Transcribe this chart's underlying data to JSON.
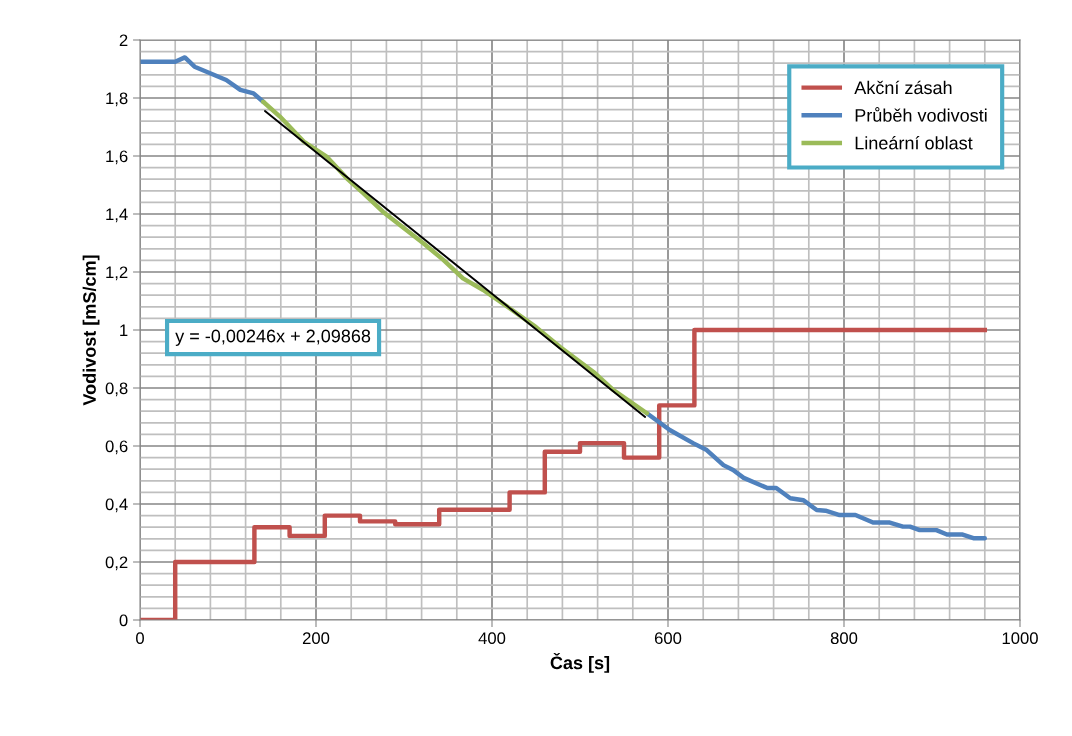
{
  "chart_data": {
    "type": "line",
    "xlabel": "Čas [s]",
    "ylabel": "Vodivost [mS/cm]",
    "xlim": [
      0,
      1000
    ],
    "ylim": [
      0,
      2
    ],
    "xticks": [
      0,
      {
        "value": 40,
        "label": null
      },
      {
        "value": 80,
        "label": null
      },
      {
        "value": 120,
        "label": null
      },
      {
        "value": 160,
        "label": null
      },
      200,
      {
        "value": 240,
        "label": null
      },
      {
        "value": 280,
        "label": null
      },
      {
        "value": 320,
        "label": null
      },
      {
        "value": 360,
        "label": null
      },
      400,
      {
        "value": 440,
        "label": null
      },
      {
        "value": 480,
        "label": null
      },
      {
        "value": 520,
        "label": null
      },
      {
        "value": 560,
        "label": null
      },
      600,
      {
        "value": 640,
        "label": null
      },
      {
        "value": 680,
        "label": null
      },
      {
        "value": 720,
        "label": null
      },
      {
        "value": 760,
        "label": null
      },
      800,
      {
        "value": 840,
        "label": null
      },
      {
        "value": 880,
        "label": null
      },
      {
        "value": 920,
        "label": null
      },
      {
        "value": 960,
        "label": null
      },
      1000
    ],
    "yticks": [
      0,
      {
        "value": 0.04,
        "label": null
      },
      {
        "value": 0.08,
        "label": null
      },
      {
        "value": 0.12,
        "label": null
      },
      {
        "value": 0.16,
        "label": null
      },
      {
        "value": 0.2,
        "label": "0,2"
      },
      {
        "value": 0.24,
        "label": null
      },
      {
        "value": 0.28,
        "label": null
      },
      {
        "value": 0.32,
        "label": null
      },
      {
        "value": 0.36,
        "label": null
      },
      {
        "value": 0.4,
        "label": "0,4"
      },
      {
        "value": 0.44,
        "label": null
      },
      {
        "value": 0.48,
        "label": null
      },
      {
        "value": 0.52,
        "label": null
      },
      {
        "value": 0.56,
        "label": null
      },
      {
        "value": 0.6,
        "label": "0,6"
      },
      {
        "value": 0.64,
        "label": null
      },
      {
        "value": 0.68,
        "label": null
      },
      {
        "value": 0.72,
        "label": null
      },
      {
        "value": 0.76,
        "label": null
      },
      {
        "value": 0.8,
        "label": "0,8"
      },
      {
        "value": 0.84,
        "label": null
      },
      {
        "value": 0.88,
        "label": null
      },
      {
        "value": 0.92,
        "label": null
      },
      {
        "value": 0.96,
        "label": null
      },
      1,
      {
        "value": 1.04,
        "label": null
      },
      {
        "value": 1.08,
        "label": null
      },
      {
        "value": 1.12,
        "label": null
      },
      {
        "value": 1.16,
        "label": null
      },
      {
        "value": 1.2,
        "label": "1,2"
      },
      {
        "value": 1.24,
        "label": null
      },
      {
        "value": 1.28,
        "label": null
      },
      {
        "value": 1.32,
        "label": null
      },
      {
        "value": 1.36,
        "label": null
      },
      {
        "value": 1.4,
        "label": "1,4"
      },
      {
        "value": 1.44,
        "label": null
      },
      {
        "value": 1.48,
        "label": null
      },
      {
        "value": 1.52,
        "label": null
      },
      {
        "value": 1.56,
        "label": null
      },
      {
        "value": 1.6,
        "label": "1,6"
      },
      {
        "value": 1.64,
        "label": null
      },
      {
        "value": 1.68,
        "label": null
      },
      {
        "value": 1.72,
        "label": null
      },
      {
        "value": 1.76,
        "label": null
      },
      {
        "value": 1.8,
        "label": "1,8"
      },
      {
        "value": 1.84,
        "label": null
      },
      {
        "value": 1.88,
        "label": null
      },
      {
        "value": 1.92,
        "label": null
      },
      {
        "value": 1.96,
        "label": null
      },
      2
    ],
    "grid": true,
    "legend": "top right",
    "marker": "none",
    "line_style": "solid",
    "annotations": [
      "y = -0,00246x + 2,09868"
    ],
    "series": [
      {
        "name": "Akční zásah",
        "type": "step",
        "color": "#c0504d",
        "x": [
          0,
          40,
          130,
          170,
          210,
          250,
          290,
          340,
          420,
          460,
          500,
          550,
          590,
          630,
          960
        ],
        "values": [
          0,
          0.2,
          0.32,
          0.29,
          0.36,
          0.34,
          0.33,
          0.38,
          0.44,
          0.58,
          0.61,
          0.56,
          0.74,
          1.0,
          1.0
        ]
      },
      {
        "name": "Průběh vodivosti",
        "color": "#4f81bd",
        "x": [
          0,
          40,
          51,
          62,
          98,
          114,
          129,
          140,
          358,
          576,
          602,
          629,
          644,
          663,
          674,
          686,
          713,
          723,
          739,
          754,
          769,
          779,
          795,
          813,
          833,
          852,
          867,
          875,
          886,
          905,
          917,
          934,
          947,
          960
        ],
        "values": [
          1.925,
          1.925,
          1.94,
          1.908,
          1.862,
          1.828,
          1.816,
          1.787,
          null,
          0.713,
          0.655,
          0.609,
          0.586,
          0.534,
          0.517,
          0.49,
          0.455,
          0.455,
          0.42,
          0.413,
          0.379,
          0.377,
          0.362,
          0.362,
          0.336,
          0.336,
          0.322,
          0.322,
          0.31,
          0.31,
          0.295,
          0.295,
          0.282,
          0.282
        ]
      },
      {
        "name": "Lineární oblast",
        "color": "#9bbb59",
        "x": [
          140,
          159,
          186,
          212,
          235,
          254,
          276,
          322,
          345,
          367,
          390,
          420,
          450,
          477,
          515,
          538,
          576
        ],
        "values": [
          1.787,
          1.736,
          1.65,
          1.598,
          1.523,
          1.471,
          1.408,
          1.299,
          1.241,
          1.178,
          1.138,
          1.075,
          1.01,
          0.942,
          0.856,
          0.793,
          0.713
        ]
      },
      {
        "color": "#000000",
        "x": [
          142,
          574
        ],
        "values": [
          1.755,
          0.7
        ]
      }
    ]
  }
}
